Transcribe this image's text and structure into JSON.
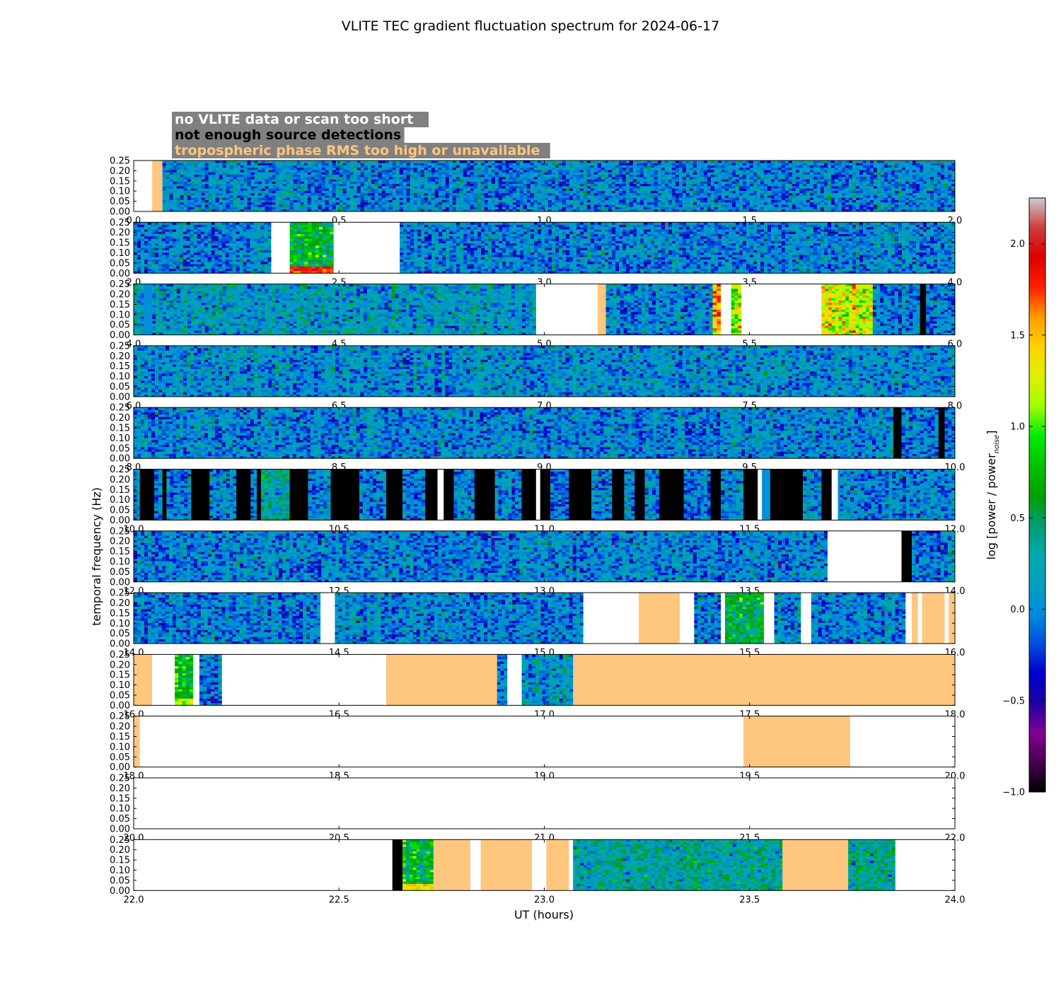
{
  "chart_data": {
    "type": "heatmap",
    "title": "VLITE TEC gradient fluctuation spectrum for 2024-06-17",
    "xlabel": "UT (hours)",
    "ylabel": "temporal frequency (Hz)",
    "colorbar_label": "log [power / power",
    "colorbar_label_sub": "noise",
    "colorbar_label_end": "]",
    "colorbar_range": [
      -1.0,
      2.25
    ],
    "colorbar_ticks": [
      "−1.0",
      "−0.5",
      "0.0",
      "0.5",
      "1.0",
      "1.5",
      "2.0"
    ],
    "colorbar_tick_values": [
      -1.0,
      -0.5,
      0.0,
      0.5,
      1.0,
      1.5,
      2.0
    ],
    "colormap": "nipy_spectral",
    "ylim": [
      0.0,
      0.25
    ],
    "yticks": [
      "0.00",
      "0.05",
      "0.10",
      "0.15",
      "0.20",
      "0.25"
    ],
    "ytick_values": [
      0.0,
      0.05,
      0.1,
      0.15,
      0.2,
      0.25
    ],
    "legend": [
      {
        "label": "no VLITE data or scan too short",
        "color": "#ffffff",
        "fill": "#ffffff"
      },
      {
        "label": "not enough source detections",
        "color": "#000000",
        "fill": "#000000"
      },
      {
        "label": "tropospheric phase RMS too high or unavailable",
        "color": "#ffc67d",
        "fill": "#ffc67d"
      }
    ],
    "legend_background": "#808080",
    "typical_log_power": 0.0,
    "panels": [
      {
        "range": [
          0,
          2
        ],
        "xticks": [
          "0.0",
          "0.5",
          "1.0",
          "1.5",
          "2.0"
        ],
        "segments": [
          {
            "t0": 0.0,
            "t1": 0.045,
            "state": "nodata"
          },
          {
            "t0": 0.045,
            "t1": 0.07,
            "state": "tropo"
          },
          {
            "t0": 0.07,
            "t1": 2.0,
            "state": "data",
            "level": 0.0
          }
        ]
      },
      {
        "range": [
          2,
          4
        ],
        "xticks": [
          "2.0",
          "2.5",
          "3.0",
          "3.5",
          "4.0"
        ],
        "segments": [
          {
            "t0": 2.0,
            "t1": 2.335,
            "state": "data",
            "level": 0.0
          },
          {
            "t0": 2.335,
            "t1": 2.38,
            "state": "nodata"
          },
          {
            "t0": 2.38,
            "t1": 2.487,
            "state": "data",
            "level": 0.6,
            "lowfreq_peak": 1.8
          },
          {
            "t0": 2.487,
            "t1": 2.648,
            "state": "nodata"
          },
          {
            "t0": 2.648,
            "t1": 4.0,
            "state": "data",
            "level": 0.0
          }
        ]
      },
      {
        "range": [
          4,
          6
        ],
        "xticks": [
          "4.0",
          "4.5",
          "5.0",
          "5.5",
          "6.0"
        ],
        "segments": [
          {
            "t0": 4.0,
            "t1": 4.025,
            "state": "data",
            "level": 0.2
          },
          {
            "t0": 4.025,
            "t1": 4.045,
            "state": "data",
            "level": 0.0,
            "flat": true
          },
          {
            "t0": 4.045,
            "t1": 4.98,
            "state": "data",
            "level": 0.15
          },
          {
            "t0": 4.98,
            "t1": 5.13,
            "state": "nodata"
          },
          {
            "t0": 5.13,
            "t1": 5.15,
            "state": "tropo"
          },
          {
            "t0": 5.15,
            "t1": 5.41,
            "state": "data",
            "level": 0.0
          },
          {
            "t0": 5.41,
            "t1": 5.43,
            "state": "data",
            "level": 1.5
          },
          {
            "t0": 5.43,
            "t1": 5.455,
            "state": "nodata"
          },
          {
            "t0": 5.455,
            "t1": 5.48,
            "state": "data",
            "level": 1.1
          },
          {
            "t0": 5.48,
            "t1": 5.675,
            "state": "nodata"
          },
          {
            "t0": 5.675,
            "t1": 5.8,
            "state": "data",
            "level": 1.3
          },
          {
            "t0": 5.8,
            "t1": 5.915,
            "state": "data",
            "level": 0.0
          },
          {
            "t0": 5.915,
            "t1": 5.93,
            "state": "nodet"
          },
          {
            "t0": 5.93,
            "t1": 6.0,
            "state": "data",
            "level": 0.0
          }
        ]
      },
      {
        "range": [
          6,
          8
        ],
        "xticks": [
          "6.0",
          "6.5",
          "7.0",
          "7.5",
          "8.0"
        ],
        "segments": [
          {
            "t0": 6.0,
            "t1": 8.0,
            "state": "data",
            "level": 0.05
          }
        ]
      },
      {
        "range": [
          8,
          10
        ],
        "xticks": [
          "8.0",
          "8.5",
          "9.0",
          "9.5",
          "10.0"
        ],
        "segments": [
          {
            "t0": 8.0,
            "t1": 9.85,
            "state": "data",
            "level": 0.0
          },
          {
            "t0": 9.85,
            "t1": 9.87,
            "state": "nodet"
          },
          {
            "t0": 9.87,
            "t1": 9.96,
            "state": "data",
            "level": 0.0
          },
          {
            "t0": 9.96,
            "t1": 9.975,
            "state": "nodet"
          },
          {
            "t0": 9.975,
            "t1": 10.0,
            "state": "data",
            "level": 0.0
          }
        ]
      },
      {
        "range": [
          10,
          12
        ],
        "xticks": [
          "10.0",
          "10.5",
          "11.0",
          "11.5",
          "12.0"
        ],
        "segments": [
          {
            "t0": 10.0,
            "t1": 10.015,
            "state": "data",
            "level": 0.0
          },
          {
            "t0": 10.015,
            "t1": 10.05,
            "state": "nodet"
          },
          {
            "t0": 10.05,
            "t1": 10.07,
            "state": "data",
            "level": 0.0
          },
          {
            "t0": 10.07,
            "t1": 10.08,
            "state": "nodet"
          },
          {
            "t0": 10.08,
            "t1": 10.14,
            "state": "data",
            "level": 0.0
          },
          {
            "t0": 10.14,
            "t1": 10.185,
            "state": "nodet"
          },
          {
            "t0": 10.185,
            "t1": 10.25,
            "state": "data",
            "level": 0.0
          },
          {
            "t0": 10.25,
            "t1": 10.285,
            "state": "nodet"
          },
          {
            "t0": 10.285,
            "t1": 10.3,
            "state": "data",
            "level": 0.0
          },
          {
            "t0": 10.3,
            "t1": 10.31,
            "state": "nodet"
          },
          {
            "t0": 10.31,
            "t1": 10.38,
            "state": "data",
            "level": 0.3
          },
          {
            "t0": 10.38,
            "t1": 10.425,
            "state": "nodet"
          },
          {
            "t0": 10.425,
            "t1": 10.48,
            "state": "data",
            "level": 0.0
          },
          {
            "t0": 10.48,
            "t1": 10.55,
            "state": "nodet"
          },
          {
            "t0": 10.55,
            "t1": 10.615,
            "state": "data",
            "level": 0.0
          },
          {
            "t0": 10.615,
            "t1": 10.655,
            "state": "nodet"
          },
          {
            "t0": 10.655,
            "t1": 10.71,
            "state": "data",
            "level": 0.0
          },
          {
            "t0": 10.71,
            "t1": 10.74,
            "state": "nodet"
          },
          {
            "t0": 10.74,
            "t1": 10.755,
            "state": "nodata"
          },
          {
            "t0": 10.755,
            "t1": 10.78,
            "state": "nodet"
          },
          {
            "t0": 10.78,
            "t1": 10.83,
            "state": "data",
            "level": 0.0
          },
          {
            "t0": 10.83,
            "t1": 10.88,
            "state": "nodet"
          },
          {
            "t0": 10.88,
            "t1": 10.945,
            "state": "data",
            "level": 0.0
          },
          {
            "t0": 10.945,
            "t1": 10.98,
            "state": "nodet"
          },
          {
            "t0": 10.98,
            "t1": 10.99,
            "state": "nodata"
          },
          {
            "t0": 10.99,
            "t1": 11.015,
            "state": "nodet"
          },
          {
            "t0": 11.015,
            "t1": 11.06,
            "state": "data",
            "level": 0.0
          },
          {
            "t0": 11.06,
            "t1": 11.115,
            "state": "nodet"
          },
          {
            "t0": 11.115,
            "t1": 11.165,
            "state": "data",
            "level": 0.0
          },
          {
            "t0": 11.165,
            "t1": 11.195,
            "state": "nodet"
          },
          {
            "t0": 11.195,
            "t1": 11.22,
            "state": "data",
            "level": 0.0
          },
          {
            "t0": 11.22,
            "t1": 11.245,
            "state": "nodet"
          },
          {
            "t0": 11.245,
            "t1": 11.28,
            "state": "data",
            "level": 0.0
          },
          {
            "t0": 11.28,
            "t1": 11.34,
            "state": "nodet"
          },
          {
            "t0": 11.34,
            "t1": 11.405,
            "state": "data",
            "level": 0.0
          },
          {
            "t0": 11.405,
            "t1": 11.43,
            "state": "nodet"
          },
          {
            "t0": 11.43,
            "t1": 11.485,
            "state": "data",
            "level": 0.0
          },
          {
            "t0": 11.485,
            "t1": 11.52,
            "state": "nodet"
          },
          {
            "t0": 11.52,
            "t1": 11.53,
            "state": "nodata"
          },
          {
            "t0": 11.53,
            "t1": 11.55,
            "state": "data",
            "level": 0.0,
            "flat": true
          },
          {
            "t0": 11.55,
            "t1": 11.63,
            "state": "nodet"
          },
          {
            "t0": 11.63,
            "t1": 11.675,
            "state": "data",
            "level": 0.0
          },
          {
            "t0": 11.675,
            "t1": 11.7,
            "state": "nodet"
          },
          {
            "t0": 11.7,
            "t1": 11.715,
            "state": "nodata"
          },
          {
            "t0": 11.715,
            "t1": 11.72,
            "state": "data",
            "level": 0.0,
            "flat": true
          },
          {
            "t0": 11.72,
            "t1": 12.0,
            "state": "data",
            "level": 0.0
          }
        ]
      },
      {
        "range": [
          12,
          14
        ],
        "xticks": [
          "12.0",
          "12.5",
          "13.0",
          "13.5",
          "14.0"
        ],
        "segments": [
          {
            "t0": 12.0,
            "t1": 13.69,
            "state": "data",
            "level": 0.0
          },
          {
            "t0": 13.69,
            "t1": 13.87,
            "state": "nodata"
          },
          {
            "t0": 13.87,
            "t1": 13.895,
            "state": "nodet"
          },
          {
            "t0": 13.895,
            "t1": 14.0,
            "state": "data",
            "level": 0.0
          }
        ]
      },
      {
        "range": [
          14,
          16
        ],
        "xticks": [
          "14.0",
          "14.5",
          "15.0",
          "15.5",
          "16.0"
        ],
        "segments": [
          {
            "t0": 14.0,
            "t1": 14.455,
            "state": "data",
            "level": 0.0
          },
          {
            "t0": 14.455,
            "t1": 14.49,
            "state": "nodata"
          },
          {
            "t0": 14.49,
            "t1": 15.095,
            "state": "data",
            "level": 0.0
          },
          {
            "t0": 15.095,
            "t1": 15.23,
            "state": "nodata"
          },
          {
            "t0": 15.23,
            "t1": 15.33,
            "state": "tropo"
          },
          {
            "t0": 15.33,
            "t1": 15.365,
            "state": "nodata"
          },
          {
            "t0": 15.365,
            "t1": 15.43,
            "state": "data",
            "level": 0.0
          },
          {
            "t0": 15.43,
            "t1": 15.44,
            "state": "nodata"
          },
          {
            "t0": 15.44,
            "t1": 15.535,
            "state": "data",
            "level": 0.55
          },
          {
            "t0": 15.535,
            "t1": 15.56,
            "state": "nodata"
          },
          {
            "t0": 15.56,
            "t1": 15.625,
            "state": "data",
            "level": 0.0
          },
          {
            "t0": 15.625,
            "t1": 15.65,
            "state": "nodata"
          },
          {
            "t0": 15.65,
            "t1": 15.88,
            "state": "data",
            "level": 0.0
          },
          {
            "t0": 15.88,
            "t1": 15.895,
            "state": "nodata"
          },
          {
            "t0": 15.895,
            "t1": 15.91,
            "state": "tropo"
          },
          {
            "t0": 15.91,
            "t1": 15.92,
            "state": "nodata"
          },
          {
            "t0": 15.92,
            "t1": 15.975,
            "state": "tropo"
          },
          {
            "t0": 15.975,
            "t1": 15.985,
            "state": "nodata"
          },
          {
            "t0": 15.985,
            "t1": 16.0,
            "state": "tropo"
          }
        ]
      },
      {
        "range": [
          16,
          18
        ],
        "xticks": [
          "16.0",
          "16.5",
          "17.0",
          "17.5",
          "18.0"
        ],
        "segments": [
          {
            "t0": 16.0,
            "t1": 16.045,
            "state": "tropo"
          },
          {
            "t0": 16.045,
            "t1": 16.1,
            "state": "nodata"
          },
          {
            "t0": 16.1,
            "t1": 16.145,
            "state": "data",
            "level": 0.7,
            "lowfreq_peak": 1.2
          },
          {
            "t0": 16.145,
            "t1": 16.16,
            "state": "nodata"
          },
          {
            "t0": 16.16,
            "t1": 16.215,
            "state": "data",
            "level": 0.0
          },
          {
            "t0": 16.215,
            "t1": 16.615,
            "state": "nodata"
          },
          {
            "t0": 16.615,
            "t1": 16.885,
            "state": "tropo"
          },
          {
            "t0": 16.885,
            "t1": 16.91,
            "state": "data",
            "level": 0.0
          },
          {
            "t0": 16.91,
            "t1": 16.945,
            "state": "nodata"
          },
          {
            "t0": 16.945,
            "t1": 17.07,
            "state": "data",
            "level": 0.15
          },
          {
            "t0": 17.07,
            "t1": 18.0,
            "state": "tropo"
          }
        ]
      },
      {
        "range": [
          18,
          20
        ],
        "xticks": [
          "18.0",
          "18.5",
          "19.0",
          "19.5",
          "20.0"
        ],
        "segments": [
          {
            "t0": 18.0,
            "t1": 18.015,
            "state": "tropo"
          },
          {
            "t0": 18.015,
            "t1": 19.485,
            "state": "nodata"
          },
          {
            "t0": 19.485,
            "t1": 19.745,
            "state": "tropo"
          },
          {
            "t0": 19.745,
            "t1": 20.0,
            "state": "nodata"
          }
        ]
      },
      {
        "range": [
          20,
          22
        ],
        "xticks": [
          "20.0",
          "20.5",
          "21.0",
          "21.5",
          "22.0"
        ],
        "segments": [
          {
            "t0": 20.0,
            "t1": 22.0,
            "state": "nodata"
          }
        ]
      },
      {
        "range": [
          22,
          24
        ],
        "xticks": [
          "22.0",
          "22.5",
          "23.0",
          "23.5",
          "24.0"
        ],
        "segments": [
          {
            "t0": 22.0,
            "t1": 22.63,
            "state": "nodata"
          },
          {
            "t0": 22.63,
            "t1": 22.655,
            "state": "nodet"
          },
          {
            "t0": 22.655,
            "t1": 22.73,
            "state": "data",
            "level": 0.6,
            "lowfreq_peak": 1.3
          },
          {
            "t0": 22.73,
            "t1": 22.82,
            "state": "tropo"
          },
          {
            "t0": 22.82,
            "t1": 22.845,
            "state": "nodata"
          },
          {
            "t0": 22.845,
            "t1": 22.97,
            "state": "tropo"
          },
          {
            "t0": 22.97,
            "t1": 23.005,
            "state": "nodata"
          },
          {
            "t0": 23.005,
            "t1": 23.06,
            "state": "tropo"
          },
          {
            "t0": 23.06,
            "t1": 23.07,
            "state": "nodata"
          },
          {
            "t0": 23.07,
            "t1": 23.58,
            "state": "data",
            "level": 0.3
          },
          {
            "t0": 23.58,
            "t1": 23.74,
            "state": "tropo"
          },
          {
            "t0": 23.74,
            "t1": 23.855,
            "state": "data",
            "level": 0.35
          },
          {
            "t0": 23.855,
            "t1": 24.0,
            "state": "nodata"
          }
        ]
      }
    ]
  }
}
